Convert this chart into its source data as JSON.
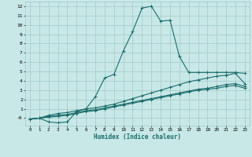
{
  "xlabel": "Humidex (Indice chaleur)",
  "bg_color": "#c8e8e8",
  "grid_color": "#a0c8c8",
  "line_color": "#1a6b6b",
  "xlim": [
    -0.5,
    23.5
  ],
  "ylim": [
    -0.8,
    12.5
  ],
  "xticks": [
    0,
    1,
    2,
    3,
    4,
    5,
    6,
    7,
    8,
    9,
    10,
    11,
    12,
    13,
    14,
    15,
    16,
    17,
    18,
    19,
    20,
    21,
    22,
    23
  ],
  "yticks": [
    0,
    1,
    2,
    3,
    4,
    5,
    6,
    7,
    8,
    9,
    10,
    11,
    12
  ],
  "ytick_labels": [
    "-0",
    "1",
    "2",
    "3",
    "4",
    "5",
    "6",
    "7",
    "8",
    "9",
    "10",
    "11",
    "12"
  ],
  "line1_x": [
    0,
    1,
    2,
    3,
    4,
    5,
    6,
    7,
    8,
    9,
    10,
    11,
    12,
    13,
    14,
    15,
    16,
    17,
    18,
    19,
    20,
    21,
    22,
    23
  ],
  "line1_y": [
    -0.1,
    -0.0,
    -0.4,
    -0.5,
    -0.4,
    0.7,
    1.0,
    2.3,
    4.3,
    4.7,
    7.2,
    9.3,
    11.8,
    12.0,
    10.4,
    10.5,
    6.6,
    4.9,
    4.9,
    4.9,
    4.9,
    4.9,
    4.9,
    4.8
  ],
  "line2_x": [
    0,
    1,
    2,
    3,
    4,
    5,
    6,
    7,
    8,
    9,
    10,
    11,
    12,
    13,
    14,
    15,
    16,
    17,
    18,
    19,
    20,
    21,
    22,
    23
  ],
  "line2_y": [
    -0.1,
    -0.0,
    0.3,
    0.5,
    0.6,
    0.8,
    1.0,
    1.1,
    1.3,
    1.5,
    1.8,
    2.1,
    2.4,
    2.7,
    3.0,
    3.3,
    3.6,
    3.9,
    4.1,
    4.3,
    4.5,
    4.6,
    4.8,
    3.7
  ],
  "line3_x": [
    0,
    1,
    2,
    3,
    4,
    5,
    6,
    7,
    8,
    9,
    10,
    11,
    12,
    13,
    14,
    15,
    16,
    17,
    18,
    19,
    20,
    21,
    22,
    23
  ],
  "line3_y": [
    -0.1,
    -0.0,
    0.2,
    0.3,
    0.4,
    0.6,
    0.8,
    0.9,
    1.1,
    1.3,
    1.5,
    1.7,
    1.9,
    2.1,
    2.3,
    2.5,
    2.7,
    2.9,
    3.1,
    3.2,
    3.4,
    3.6,
    3.7,
    3.4
  ],
  "line4_x": [
    0,
    1,
    2,
    3,
    4,
    5,
    6,
    7,
    8,
    9,
    10,
    11,
    12,
    13,
    14,
    15,
    16,
    17,
    18,
    19,
    20,
    21,
    22,
    23
  ],
  "line4_y": [
    -0.1,
    -0.0,
    0.1,
    0.2,
    0.3,
    0.5,
    0.7,
    0.8,
    1.0,
    1.2,
    1.4,
    1.6,
    1.8,
    2.0,
    2.2,
    2.4,
    2.6,
    2.8,
    3.0,
    3.1,
    3.2,
    3.4,
    3.5,
    3.2
  ]
}
